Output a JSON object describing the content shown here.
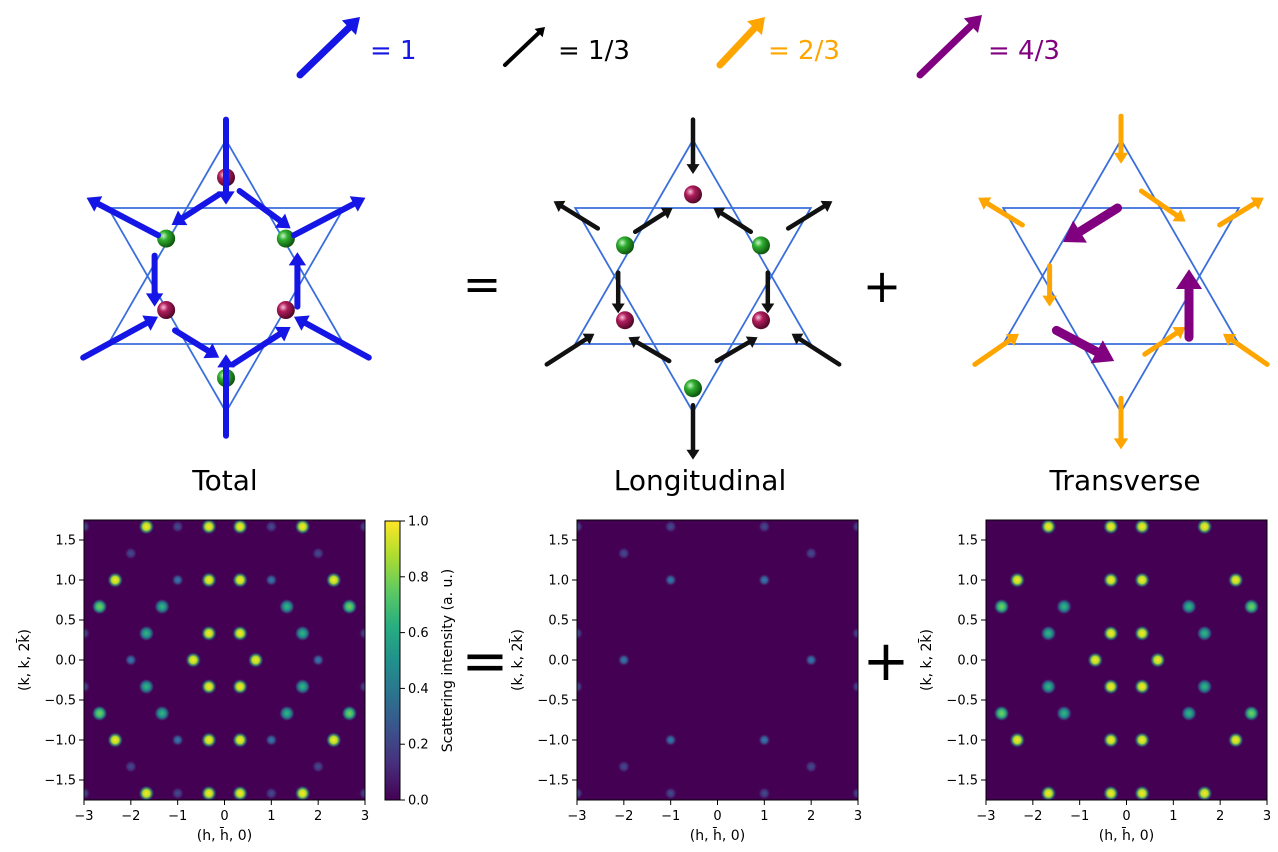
{
  "legend": [
    {
      "label": "= 1",
      "color": "#1515e6"
    },
    {
      "label": "= 1/3",
      "color": "#000000"
    },
    {
      "label": "= 2/3",
      "color": "#ffa500"
    },
    {
      "label": "= 4/3",
      "color": "#800080"
    }
  ],
  "operators": {
    "equals": "=",
    "plus": "+"
  },
  "panels": [
    {
      "title": "Total"
    },
    {
      "title": "Longitudinal"
    },
    {
      "title": "Transverse"
    }
  ],
  "colors": {
    "lattice": "#3a6fdc",
    "atom_green": "#1a8a1a",
    "atom_magenta": "#a0174f",
    "map_bg": "#440154",
    "arrow_total": "#1515e6",
    "arrow_long": "#111111",
    "arrow_trans_small": "#ffa500",
    "arrow_trans_big": "#800080"
  },
  "chart_data": [
    {
      "type": "heatmap",
      "name": "total",
      "xlabel": "(h, h̄, 0)",
      "ylabel": "(k, k, 2k̄)",
      "xlim": [
        -3,
        3
      ],
      "ylim": [
        -1.75,
        1.75
      ],
      "xticks": [
        "−3",
        "−2",
        "−1",
        "0",
        "1",
        "2",
        "3"
      ],
      "yticks": [
        "−1.5",
        "−1.0",
        "−0.5",
        "0.0",
        "0.5",
        "1.0",
        "1.5"
      ],
      "colorscale": "viridis",
      "colorbar": {
        "label": "Scattering intensity (a. u.)",
        "range": [
          0,
          1
        ],
        "ticks": [
          "0.0",
          "0.2",
          "0.4",
          "0.6",
          "0.8",
          "1.0"
        ]
      },
      "peaks": [
        {
          "x": -1.667,
          "y": 1.667,
          "v": 1.0
        },
        {
          "x": -0.333,
          "y": 1.667,
          "v": 1.0
        },
        {
          "x": 0.333,
          "y": 1.667,
          "v": 1.0
        },
        {
          "x": 1.667,
          "y": 1.667,
          "v": 1.0
        },
        {
          "x": -2.333,
          "y": 1.0,
          "v": 1.0
        },
        {
          "x": -0.333,
          "y": 1.0,
          "v": 1.0
        },
        {
          "x": 0.333,
          "y": 1.0,
          "v": 1.0
        },
        {
          "x": 2.333,
          "y": 1.0,
          "v": 1.0
        },
        {
          "x": -2.667,
          "y": 0.667,
          "v": 0.8
        },
        {
          "x": -1.333,
          "y": 0.667,
          "v": 0.6
        },
        {
          "x": 1.333,
          "y": 0.667,
          "v": 0.6
        },
        {
          "x": 2.667,
          "y": 0.667,
          "v": 0.8
        },
        {
          "x": -1.667,
          "y": 0.333,
          "v": 0.6
        },
        {
          "x": -0.333,
          "y": 0.333,
          "v": 1.0
        },
        {
          "x": 0.333,
          "y": 0.333,
          "v": 1.0
        },
        {
          "x": 1.667,
          "y": 0.333,
          "v": 0.6
        },
        {
          "x": -0.667,
          "y": 0.0,
          "v": 1.0
        },
        {
          "x": 0.667,
          "y": 0.0,
          "v": 1.0
        },
        {
          "x": -1.667,
          "y": -0.333,
          "v": 0.6
        },
        {
          "x": -0.333,
          "y": -0.333,
          "v": 1.0
        },
        {
          "x": 0.333,
          "y": -0.333,
          "v": 1.0
        },
        {
          "x": 1.667,
          "y": -0.333,
          "v": 0.6
        },
        {
          "x": -2.667,
          "y": -0.667,
          "v": 0.8
        },
        {
          "x": -1.333,
          "y": -0.667,
          "v": 0.6
        },
        {
          "x": 1.333,
          "y": -0.667,
          "v": 0.6
        },
        {
          "x": 2.667,
          "y": -0.667,
          "v": 0.8
        },
        {
          "x": -2.333,
          "y": -1.0,
          "v": 1.0
        },
        {
          "x": -0.333,
          "y": -1.0,
          "v": 1.0
        },
        {
          "x": 0.333,
          "y": -1.0,
          "v": 1.0
        },
        {
          "x": 2.333,
          "y": -1.0,
          "v": 1.0
        },
        {
          "x": -1.667,
          "y": -1.667,
          "v": 1.0
        },
        {
          "x": -0.333,
          "y": -1.667,
          "v": 1.0
        },
        {
          "x": 0.333,
          "y": -1.667,
          "v": 1.0
        },
        {
          "x": 1.667,
          "y": -1.667,
          "v": 1.0
        },
        {
          "x": -1.0,
          "y": 1.0,
          "v": 0.25
        },
        {
          "x": 1.0,
          "y": 1.0,
          "v": 0.25
        },
        {
          "x": -2.0,
          "y": 0.0,
          "v": 0.25
        },
        {
          "x": 2.0,
          "y": 0.0,
          "v": 0.25
        },
        {
          "x": -1.0,
          "y": -1.0,
          "v": 0.25
        },
        {
          "x": 1.0,
          "y": -1.0,
          "v": 0.25
        },
        {
          "x": -2.0,
          "y": 1.333,
          "v": 0.15
        },
        {
          "x": 2.0,
          "y": 1.333,
          "v": 0.15
        },
        {
          "x": -2.0,
          "y": -1.333,
          "v": 0.15
        },
        {
          "x": 2.0,
          "y": -1.333,
          "v": 0.15
        },
        {
          "x": -1.0,
          "y": 1.667,
          "v": 0.15
        },
        {
          "x": 1.0,
          "y": 1.667,
          "v": 0.15
        },
        {
          "x": -1.0,
          "y": -1.667,
          "v": 0.15
        },
        {
          "x": 1.0,
          "y": -1.667,
          "v": 0.15
        },
        {
          "x": -3.0,
          "y": 1.667,
          "v": 0.15
        },
        {
          "x": 3.0,
          "y": 1.667,
          "v": 0.15
        },
        {
          "x": -3.0,
          "y": -1.667,
          "v": 0.15
        },
        {
          "x": 3.0,
          "y": -1.667,
          "v": 0.15
        },
        {
          "x": -3.0,
          "y": 0.333,
          "v": 0.15
        },
        {
          "x": 3.0,
          "y": 0.333,
          "v": 0.15
        },
        {
          "x": -3.0,
          "y": -0.333,
          "v": 0.15
        },
        {
          "x": 3.0,
          "y": -0.333,
          "v": 0.15
        }
      ]
    },
    {
      "type": "heatmap",
      "name": "longitudinal",
      "xlabel": "(h, h̄, 0)",
      "ylabel": "(k, k, 2k̄)",
      "xlim": [
        -3,
        3
      ],
      "ylim": [
        -1.75,
        1.75
      ],
      "xticks": [
        "−3",
        "−2",
        "−1",
        "0",
        "1",
        "2",
        "3"
      ],
      "yticks": [
        "−1.5",
        "−1.0",
        "−0.5",
        "0.0",
        "0.5",
        "1.0",
        "1.5"
      ],
      "colorscale": "viridis",
      "peaks": [
        {
          "x": -1.0,
          "y": 1.0,
          "v": 0.25
        },
        {
          "x": 1.0,
          "y": 1.0,
          "v": 0.25
        },
        {
          "x": -2.0,
          "y": 0.0,
          "v": 0.25
        },
        {
          "x": 2.0,
          "y": 0.0,
          "v": 0.25
        },
        {
          "x": -1.0,
          "y": -1.0,
          "v": 0.25
        },
        {
          "x": 1.0,
          "y": -1.0,
          "v": 0.25
        },
        {
          "x": -2.0,
          "y": 1.333,
          "v": 0.15
        },
        {
          "x": 2.0,
          "y": 1.333,
          "v": 0.15
        },
        {
          "x": -2.0,
          "y": -1.333,
          "v": 0.15
        },
        {
          "x": 2.0,
          "y": -1.333,
          "v": 0.15
        },
        {
          "x": -1.0,
          "y": 1.667,
          "v": 0.15
        },
        {
          "x": 1.0,
          "y": 1.667,
          "v": 0.15
        },
        {
          "x": -1.0,
          "y": -1.667,
          "v": 0.15
        },
        {
          "x": 1.0,
          "y": -1.667,
          "v": 0.15
        },
        {
          "x": -3.0,
          "y": 1.667,
          "v": 0.15
        },
        {
          "x": 3.0,
          "y": 1.667,
          "v": 0.15
        },
        {
          "x": -3.0,
          "y": -1.667,
          "v": 0.15
        },
        {
          "x": 3.0,
          "y": -1.667,
          "v": 0.15
        },
        {
          "x": -3.0,
          "y": 0.333,
          "v": 0.15
        },
        {
          "x": 3.0,
          "y": 0.333,
          "v": 0.15
        },
        {
          "x": -3.0,
          "y": -0.333,
          "v": 0.15
        },
        {
          "x": 3.0,
          "y": -0.333,
          "v": 0.15
        }
      ]
    },
    {
      "type": "heatmap",
      "name": "transverse",
      "xlabel": "(h, h̄, 0)",
      "ylabel": "(k, k, 2k̄)",
      "xlim": [
        -3,
        3
      ],
      "ylim": [
        -1.75,
        1.75
      ],
      "xticks": [
        "−3",
        "−2",
        "−1",
        "0",
        "1",
        "2",
        "3"
      ],
      "yticks": [
        "−1.5",
        "−1.0",
        "−0.5",
        "0.0",
        "0.5",
        "1.0",
        "1.5"
      ],
      "colorscale": "viridis",
      "peaks": [
        {
          "x": -1.667,
          "y": 1.667,
          "v": 1.0
        },
        {
          "x": -0.333,
          "y": 1.667,
          "v": 1.0
        },
        {
          "x": 0.333,
          "y": 1.667,
          "v": 1.0
        },
        {
          "x": 1.667,
          "y": 1.667,
          "v": 1.0
        },
        {
          "x": -2.333,
          "y": 1.0,
          "v": 1.0
        },
        {
          "x": -0.333,
          "y": 1.0,
          "v": 1.0
        },
        {
          "x": 0.333,
          "y": 1.0,
          "v": 1.0
        },
        {
          "x": 2.333,
          "y": 1.0,
          "v": 1.0
        },
        {
          "x": -2.667,
          "y": 0.667,
          "v": 0.8
        },
        {
          "x": -1.333,
          "y": 0.667,
          "v": 0.6
        },
        {
          "x": 1.333,
          "y": 0.667,
          "v": 0.6
        },
        {
          "x": 2.667,
          "y": 0.667,
          "v": 0.8
        },
        {
          "x": -1.667,
          "y": 0.333,
          "v": 0.6
        },
        {
          "x": -0.333,
          "y": 0.333,
          "v": 1.0
        },
        {
          "x": 0.333,
          "y": 0.333,
          "v": 1.0
        },
        {
          "x": 1.667,
          "y": 0.333,
          "v": 0.6
        },
        {
          "x": -0.667,
          "y": 0.0,
          "v": 1.0
        },
        {
          "x": 0.667,
          "y": 0.0,
          "v": 1.0
        },
        {
          "x": -1.667,
          "y": -0.333,
          "v": 0.6
        },
        {
          "x": -0.333,
          "y": -0.333,
          "v": 1.0
        },
        {
          "x": 0.333,
          "y": -0.333,
          "v": 1.0
        },
        {
          "x": 1.667,
          "y": -0.333,
          "v": 0.6
        },
        {
          "x": -2.667,
          "y": -0.667,
          "v": 0.8
        },
        {
          "x": -1.333,
          "y": -0.667,
          "v": 0.6
        },
        {
          "x": 1.333,
          "y": -0.667,
          "v": 0.6
        },
        {
          "x": 2.667,
          "y": -0.667,
          "v": 0.8
        },
        {
          "x": -2.333,
          "y": -1.0,
          "v": 1.0
        },
        {
          "x": -0.333,
          "y": -1.0,
          "v": 1.0
        },
        {
          "x": 0.333,
          "y": -1.0,
          "v": 1.0
        },
        {
          "x": 2.333,
          "y": -1.0,
          "v": 1.0
        },
        {
          "x": -1.667,
          "y": -1.667,
          "v": 1.0
        },
        {
          "x": -0.333,
          "y": -1.667,
          "v": 1.0
        },
        {
          "x": 0.333,
          "y": -1.667,
          "v": 1.0
        },
        {
          "x": 1.667,
          "y": -1.667,
          "v": 1.0
        }
      ]
    }
  ]
}
